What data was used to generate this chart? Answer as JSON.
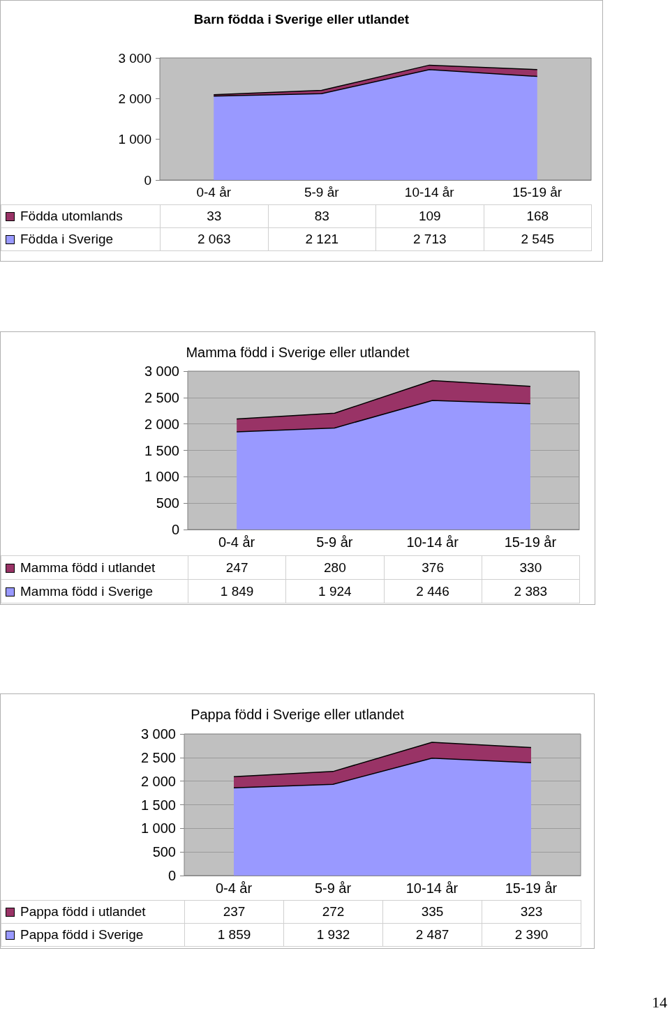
{
  "chart_data": [
    {
      "type": "area",
      "title": "Barn födda i Sverige eller utlandet",
      "categories": [
        "0-4 år",
        "5-9 år",
        "10-14 år",
        "15-19 år"
      ],
      "stacked": true,
      "ylim": [
        0,
        3000
      ],
      "yticks": [
        {
          "value": 0,
          "label": "0"
        },
        {
          "value": 1000,
          "label": "1 000"
        },
        {
          "value": 2000,
          "label": "2 000"
        },
        {
          "value": 3000,
          "label": "3 000"
        }
      ],
      "grid": false,
      "legend": "bottom left",
      "data_labels": true,
      "marker": "none",
      "series": [
        {
          "name": "Födda i Sverige",
          "color": "#9999ff",
          "values": [
            2063,
            2121,
            2713,
            2545
          ]
        },
        {
          "name": "Födda utomlands",
          "color": "#993366",
          "values": [
            33,
            83,
            109,
            168
          ]
        }
      ]
    },
    {
      "type": "area",
      "title": "Mamma född i Sverige eller utlandet",
      "categories": [
        "0-4 år",
        "5-9 år",
        "10-14 år",
        "15-19 år"
      ],
      "stacked": true,
      "ylim": [
        0,
        3000
      ],
      "yticks": [
        {
          "value": 0,
          "label": "0"
        },
        {
          "value": 500,
          "label": "500"
        },
        {
          "value": 1000,
          "label": "1 000"
        },
        {
          "value": 1500,
          "label": "1 500"
        },
        {
          "value": 2000,
          "label": "2 000"
        },
        {
          "value": 2500,
          "label": "2 500"
        },
        {
          "value": 3000,
          "label": "3 000"
        }
      ],
      "grid": "y",
      "legend": "bottom left",
      "data_labels": true,
      "marker": "none",
      "series": [
        {
          "name": "Mamma född i Sverige",
          "color": "#9999ff",
          "values": [
            1849,
            1924,
            2446,
            2383
          ]
        },
        {
          "name": "Mamma född i utlandet",
          "color": "#993366",
          "values": [
            247,
            280,
            376,
            330
          ]
        }
      ]
    },
    {
      "type": "area",
      "title": "Pappa född i Sverige eller utlandet",
      "categories": [
        "0-4 år",
        "5-9 år",
        "10-14 år",
        "15-19 år"
      ],
      "stacked": true,
      "ylim": [
        0,
        3000
      ],
      "yticks": [
        {
          "value": 0,
          "label": "0"
        },
        {
          "value": 500,
          "label": "500"
        },
        {
          "value": 1000,
          "label": "1 000"
        },
        {
          "value": 1500,
          "label": "1 500"
        },
        {
          "value": 2000,
          "label": "2 000"
        },
        {
          "value": 2500,
          "label": "2 500"
        },
        {
          "value": 3000,
          "label": "3 000"
        }
      ],
      "grid": "y",
      "legend": "bottom left",
      "data_labels": true,
      "marker": "none",
      "annotations": [
        "14"
      ],
      "series": [
        {
          "name": "Pappa född i Sverige",
          "color": "#9999ff",
          "values": [
            1859,
            1932,
            2487,
            2390
          ]
        },
        {
          "name": "Pappa född i utlandet",
          "color": "#993366",
          "values": [
            237,
            272,
            335,
            323
          ]
        }
      ]
    }
  ]
}
